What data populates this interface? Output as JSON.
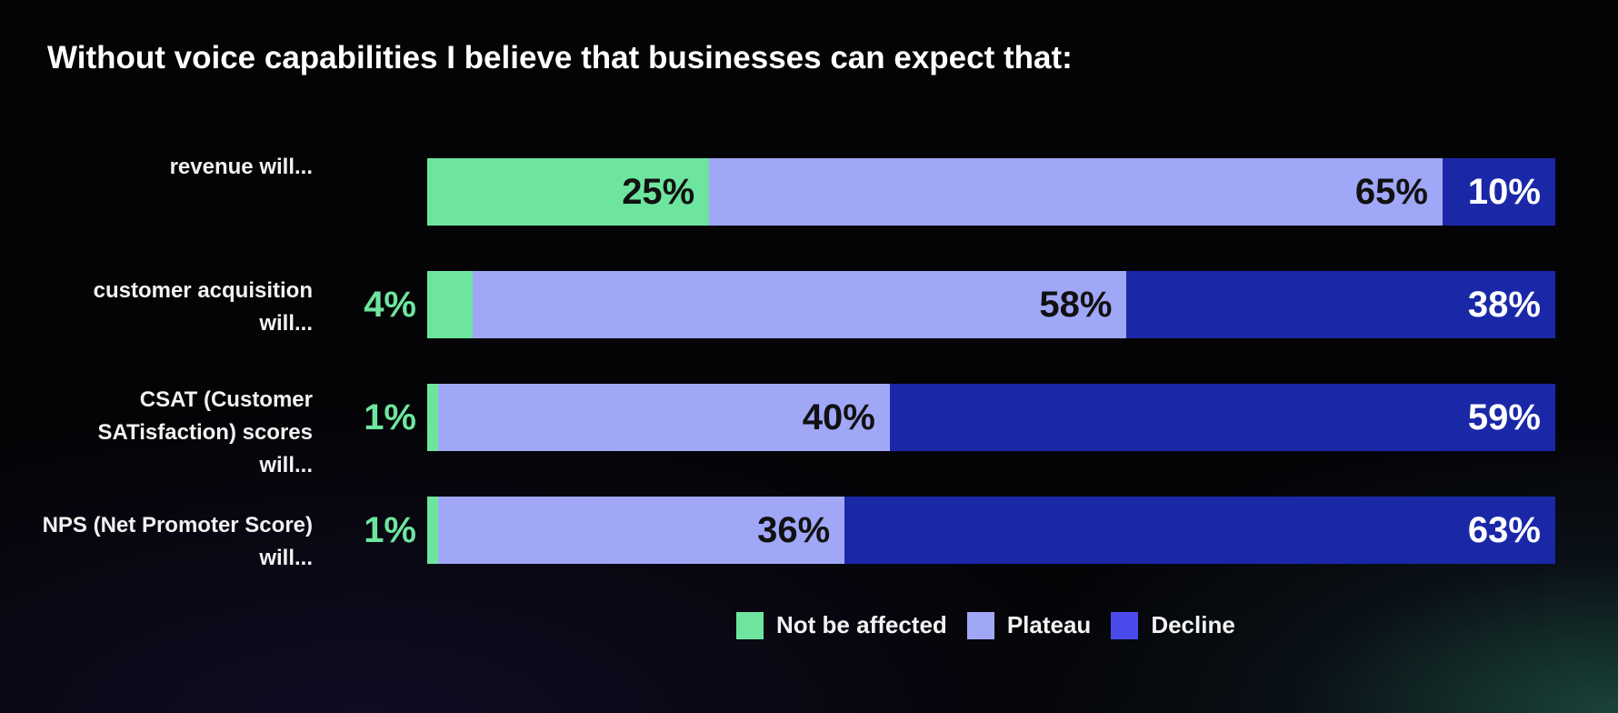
{
  "chart_data": {
    "type": "bar",
    "orientation": "horizontal",
    "stacked": true,
    "title": "Without voice capabilities I believe that businesses can expect that:",
    "categories": [
      "revenue will...",
      "customer acquisition will...",
      "CSAT (Customer SATisfaction) scores will...",
      "NPS (Net Promoter Score) will..."
    ],
    "series": [
      {
        "name": "Not be affected",
        "color": "#6ee59e",
        "values": [
          25,
          4,
          1,
          1
        ],
        "labels": [
          "25%",
          "4%",
          "1%",
          "1%"
        ]
      },
      {
        "name": "Plateau",
        "color": "#a0a7f7",
        "values": [
          65,
          58,
          40,
          36
        ],
        "labels": [
          "65%",
          "58%",
          "40%",
          "36%"
        ]
      },
      {
        "name": "Decline",
        "color": "#1a28a8",
        "values": [
          10,
          38,
          59,
          63
        ],
        "labels": [
          "10%",
          "38%",
          "59%",
          "63%"
        ]
      }
    ],
    "xlim": [
      0,
      100
    ],
    "grid": false,
    "legend": "bottom",
    "legend_swatch_colors": [
      "#6ee59e",
      "#a0a7f7",
      "#4a4bea"
    ],
    "label_colors": {
      "inside_light_segment": "#111111",
      "inside_dark_segment": "#ffffff",
      "outside": "#6ee59e"
    }
  },
  "colors": {
    "background": "#040407",
    "text": "#f2f2f2"
  }
}
